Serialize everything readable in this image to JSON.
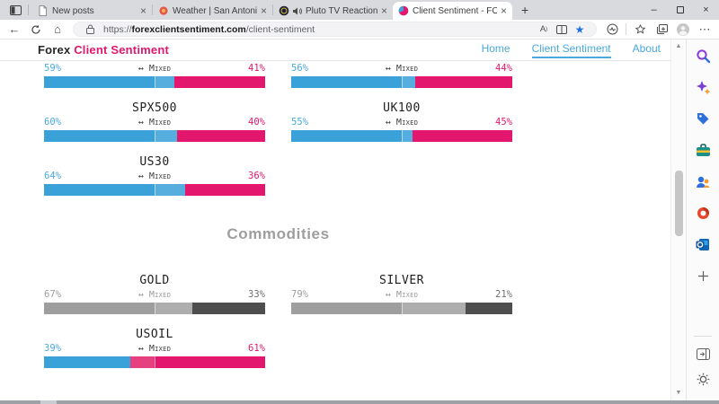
{
  "browser": {
    "tabs": [
      {
        "title": "New posts",
        "favicon": "page",
        "audio": false,
        "active": false
      },
      {
        "title": "Weather | San Antonio Forecast",
        "favicon": "weather",
        "audio": false,
        "active": false
      },
      {
        "title": "Pluto TV Reaction on Pluto",
        "favicon": "pluto",
        "audio": true,
        "active": false
      },
      {
        "title": "Client Sentiment - FOREX Client",
        "favicon": "sentiment",
        "audio": false,
        "active": true
      }
    ],
    "new_tab_label": "+",
    "window_controls": [
      "minimize",
      "maximize",
      "close"
    ],
    "toolbar_icons": [
      "back",
      "refresh",
      "home"
    ],
    "address": {
      "scheme": "https://",
      "host": "forexclientsentiment.com",
      "path": "/client-sentiment"
    },
    "address_icons": [
      "lock",
      "read-aloud",
      "split-screen",
      "favorite-star-filled"
    ],
    "toolbar_right_icons": [
      "browser-essentials",
      "favorites",
      "collections",
      "profile",
      "more"
    ],
    "sidebar_icons": [
      "search",
      "copilot",
      "shopping",
      "toolbox",
      "people",
      "office",
      "outlook",
      "add"
    ],
    "sidebar_bottom_icons": [
      "open-sidebar",
      "settings"
    ]
  },
  "page": {
    "brand": {
      "prefix": "Forex",
      "accent": "Client Sentiment"
    },
    "nav": [
      {
        "label": "Home",
        "active": false
      },
      {
        "label": "Client Sentiment",
        "active": true
      },
      {
        "label": "About",
        "active": false
      }
    ],
    "mixed_label": "Mixed",
    "mixed_arrow": "↔",
    "sections": [
      {
        "heading": "",
        "rows": [
          [
            {
              "name": "",
              "long": 59,
              "short": 41,
              "palette": "brand"
            },
            {
              "name": "",
              "long": 56,
              "short": 44,
              "palette": "brand"
            }
          ],
          [
            {
              "name": "SPX500",
              "long": 60,
              "short": 40,
              "palette": "brand"
            },
            {
              "name": "UK100",
              "long": 55,
              "short": 45,
              "palette": "brand"
            }
          ],
          [
            {
              "name": "US30",
              "long": 64,
              "short": 36,
              "palette": "brand"
            }
          ]
        ]
      },
      {
        "heading": "Commodities",
        "rows": [
          [
            {
              "name": "GOLD",
              "long": 67,
              "short": 33,
              "palette": "gray"
            },
            {
              "name": "SILVER",
              "long": 79,
              "short": 21,
              "palette": "gray"
            }
          ],
          [
            {
              "name": "USOIL",
              "long": 39,
              "short": 61,
              "palette": "brand"
            }
          ]
        ]
      }
    ],
    "palettes": {
      "brand": {
        "long": "#3aa2d8",
        "long_light": "#55aedd",
        "short": "#e2176d",
        "short_light": "#e6407f",
        "label_long": "#4aa9de",
        "label_short": "#e0196e",
        "mixed": "#3f3f3f"
      },
      "gray": {
        "long": "#9e9e9e",
        "long_light": "#aeaeae",
        "short": "#4e4e4e",
        "short_light": "#5e5e5e",
        "label_long": "#9e9e9e",
        "label_short": "#707070",
        "mixed": "#9b9b9b"
      }
    }
  }
}
